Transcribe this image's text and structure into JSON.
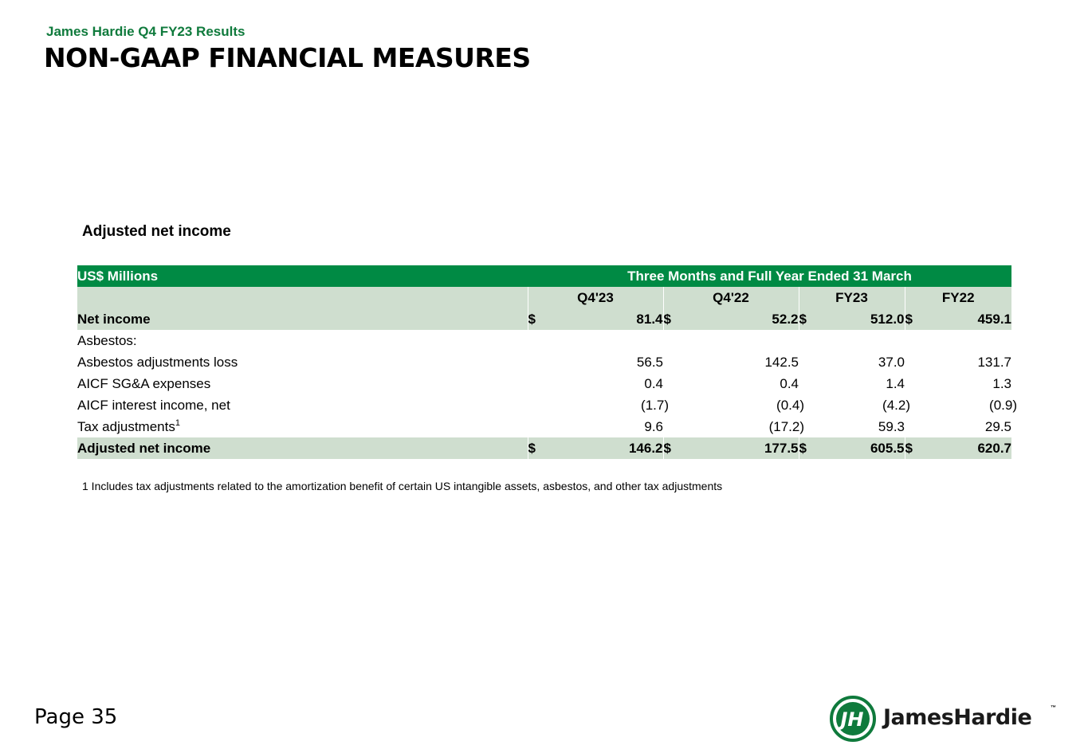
{
  "header": {
    "subtitle": "James Hardie Q4 FY23 Results",
    "title": "NON-GAAP FINANCIAL MEASURES"
  },
  "section_title": "Adjusted net income",
  "table": {
    "unit_label": "US$ Millions",
    "period_label": "Three Months and Full Year Ended 31 March",
    "columns": [
      "Q4'23",
      "Q4'22",
      "FY23",
      "FY22"
    ],
    "currency_symbol": "$",
    "rows": {
      "net_income": {
        "label": "Net income",
        "values": [
          "81.4",
          "52.2",
          "512.0",
          "459.1"
        ]
      },
      "asbestos": {
        "label": "Asbestos:"
      },
      "asbestos_adjustments_loss": {
        "label": "Asbestos adjustments loss",
        "values": [
          "56.5",
          "142.5",
          "37.0",
          "131.7"
        ]
      },
      "aicf_sga_expenses": {
        "label": "AICF SG&A expenses",
        "values": [
          "0.4",
          "0.4",
          "1.4",
          "1.3"
        ]
      },
      "aicf_interest_income": {
        "label": "AICF interest income, net",
        "values": [
          "(1.7)",
          "(0.4)",
          "(4.2)",
          "(0.9)"
        ]
      },
      "tax_adjustments": {
        "label": "Tax adjustments",
        "footnote_mark": "1",
        "values": [
          "9.6",
          "(17.2)",
          "59.3",
          "29.5"
        ]
      },
      "adjusted_net_income": {
        "label": "Adjusted net income",
        "values": [
          "146.2",
          "177.5",
          "605.5",
          "620.7"
        ]
      }
    }
  },
  "footnote": "1 Includes tax adjustments related to the amortization benefit of certain US intangible assets, asbestos, and other tax adjustments",
  "page_label": "Page 35",
  "logo": {
    "text": "JamesHardie",
    "trademark": "™",
    "icon": "jh-monogram-logo-icon",
    "color": "#0f7a3c"
  },
  "colors": {
    "brand_green": "#008a44",
    "row_shade": "#cfdecf",
    "subtitle_green": "#0f7a3c"
  }
}
